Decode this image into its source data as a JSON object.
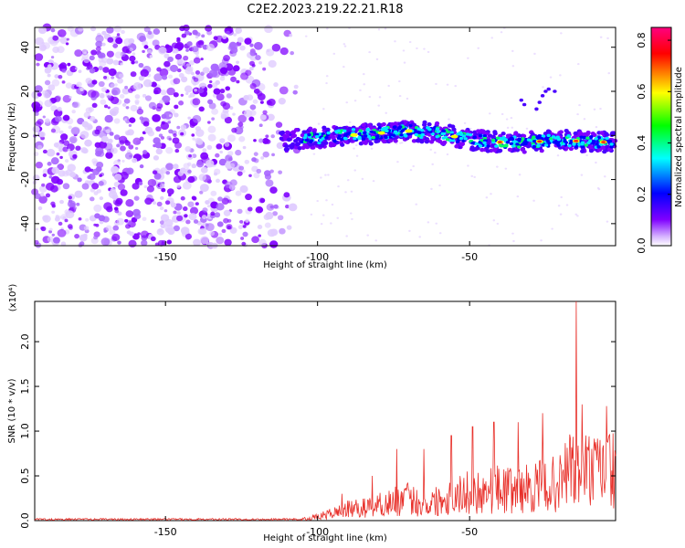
{
  "title": "C2E2.2023.219.22.21.R18",
  "chart_data": [
    {
      "type": "heatmap",
      "xlabel": "Height of straight line (km)",
      "ylabel": "Frequency (Hz)",
      "xlim": [
        -193,
        -2
      ],
      "ylim": [
        -50,
        49
      ],
      "xticks": [
        -150,
        -100,
        -50
      ],
      "yticks": [
        -40,
        -20,
        0,
        20,
        40
      ],
      "colorbar": {
        "label": "Normalized spectral amplitude",
        "range": [
          0,
          0.85
        ],
        "ticks": [
          0.0,
          0.2,
          0.4,
          0.6,
          0.8
        ],
        "colors": [
          "#ffffff",
          "#7f00ff",
          "#0000ff",
          "#00ffff",
          "#00ff00",
          "#ffff00",
          "#ff0000",
          "#ff0080"
        ]
      },
      "signal_trace": {
        "description_points_x": [
          -110,
          -100,
          -90,
          -80,
          -70,
          -60,
          -50,
          -40,
          -30,
          -20,
          -10,
          -2
        ],
        "frequency_hz": [
          -2,
          -1,
          0,
          1,
          2,
          1,
          -2,
          -3,
          -3,
          -2,
          -3,
          -3
        ]
      },
      "noise_region_x": [
        -193,
        -104
      ]
    },
    {
      "type": "line",
      "xlabel": "Height of straight line (km)",
      "ylabel": "SNR (10 * v/v)",
      "yscale_label": "(x10⁴)",
      "xlim": [
        -193,
        -2
      ],
      "ylim": [
        0,
        2.45
      ],
      "xticks": [
        -150,
        -100,
        -50
      ],
      "yticks": [
        0.0,
        0.5,
        1.0,
        1.5,
        2.0
      ],
      "yticklabels": [
        "0.0",
        "0.5",
        "1.0",
        "1.5",
        "2.0"
      ],
      "series": [
        {
          "color": "#e8302a",
          "x": [
            -193,
            -110,
            -104,
            -100,
            -95,
            -90,
            -85,
            -80,
            -75,
            -70,
            -65,
            -60,
            -55,
            -50,
            -45,
            -40,
            -35,
            -30,
            -25,
            -20,
            -17,
            -15,
            -12,
            -10,
            -7,
            -5,
            -2
          ],
          "y": [
            0.01,
            0.01,
            0.03,
            0.06,
            0.12,
            0.18,
            0.2,
            0.25,
            0.3,
            0.35,
            0.25,
            0.33,
            0.4,
            0.45,
            0.48,
            0.5,
            0.48,
            0.52,
            0.55,
            0.6,
            0.9,
            0.7,
            0.85,
            0.75,
            0.8,
            0.85,
            0.8
          ],
          "spikes": [
            {
              "x": -15,
              "y": 2.45
            },
            {
              "x": -13,
              "y": 1.3
            },
            {
              "x": -5,
              "y": 1.28
            },
            {
              "x": -26,
              "y": 1.2
            },
            {
              "x": -34,
              "y": 1.1
            },
            {
              "x": -42,
              "y": 1.1
            },
            {
              "x": -49,
              "y": 1.05
            },
            {
              "x": -56,
              "y": 0.95
            },
            {
              "x": -65,
              "y": 0.8
            },
            {
              "x": -74,
              "y": 0.8
            },
            {
              "x": -82,
              "y": 0.5
            },
            {
              "x": -92,
              "y": 0.3
            }
          ]
        }
      ]
    }
  ]
}
